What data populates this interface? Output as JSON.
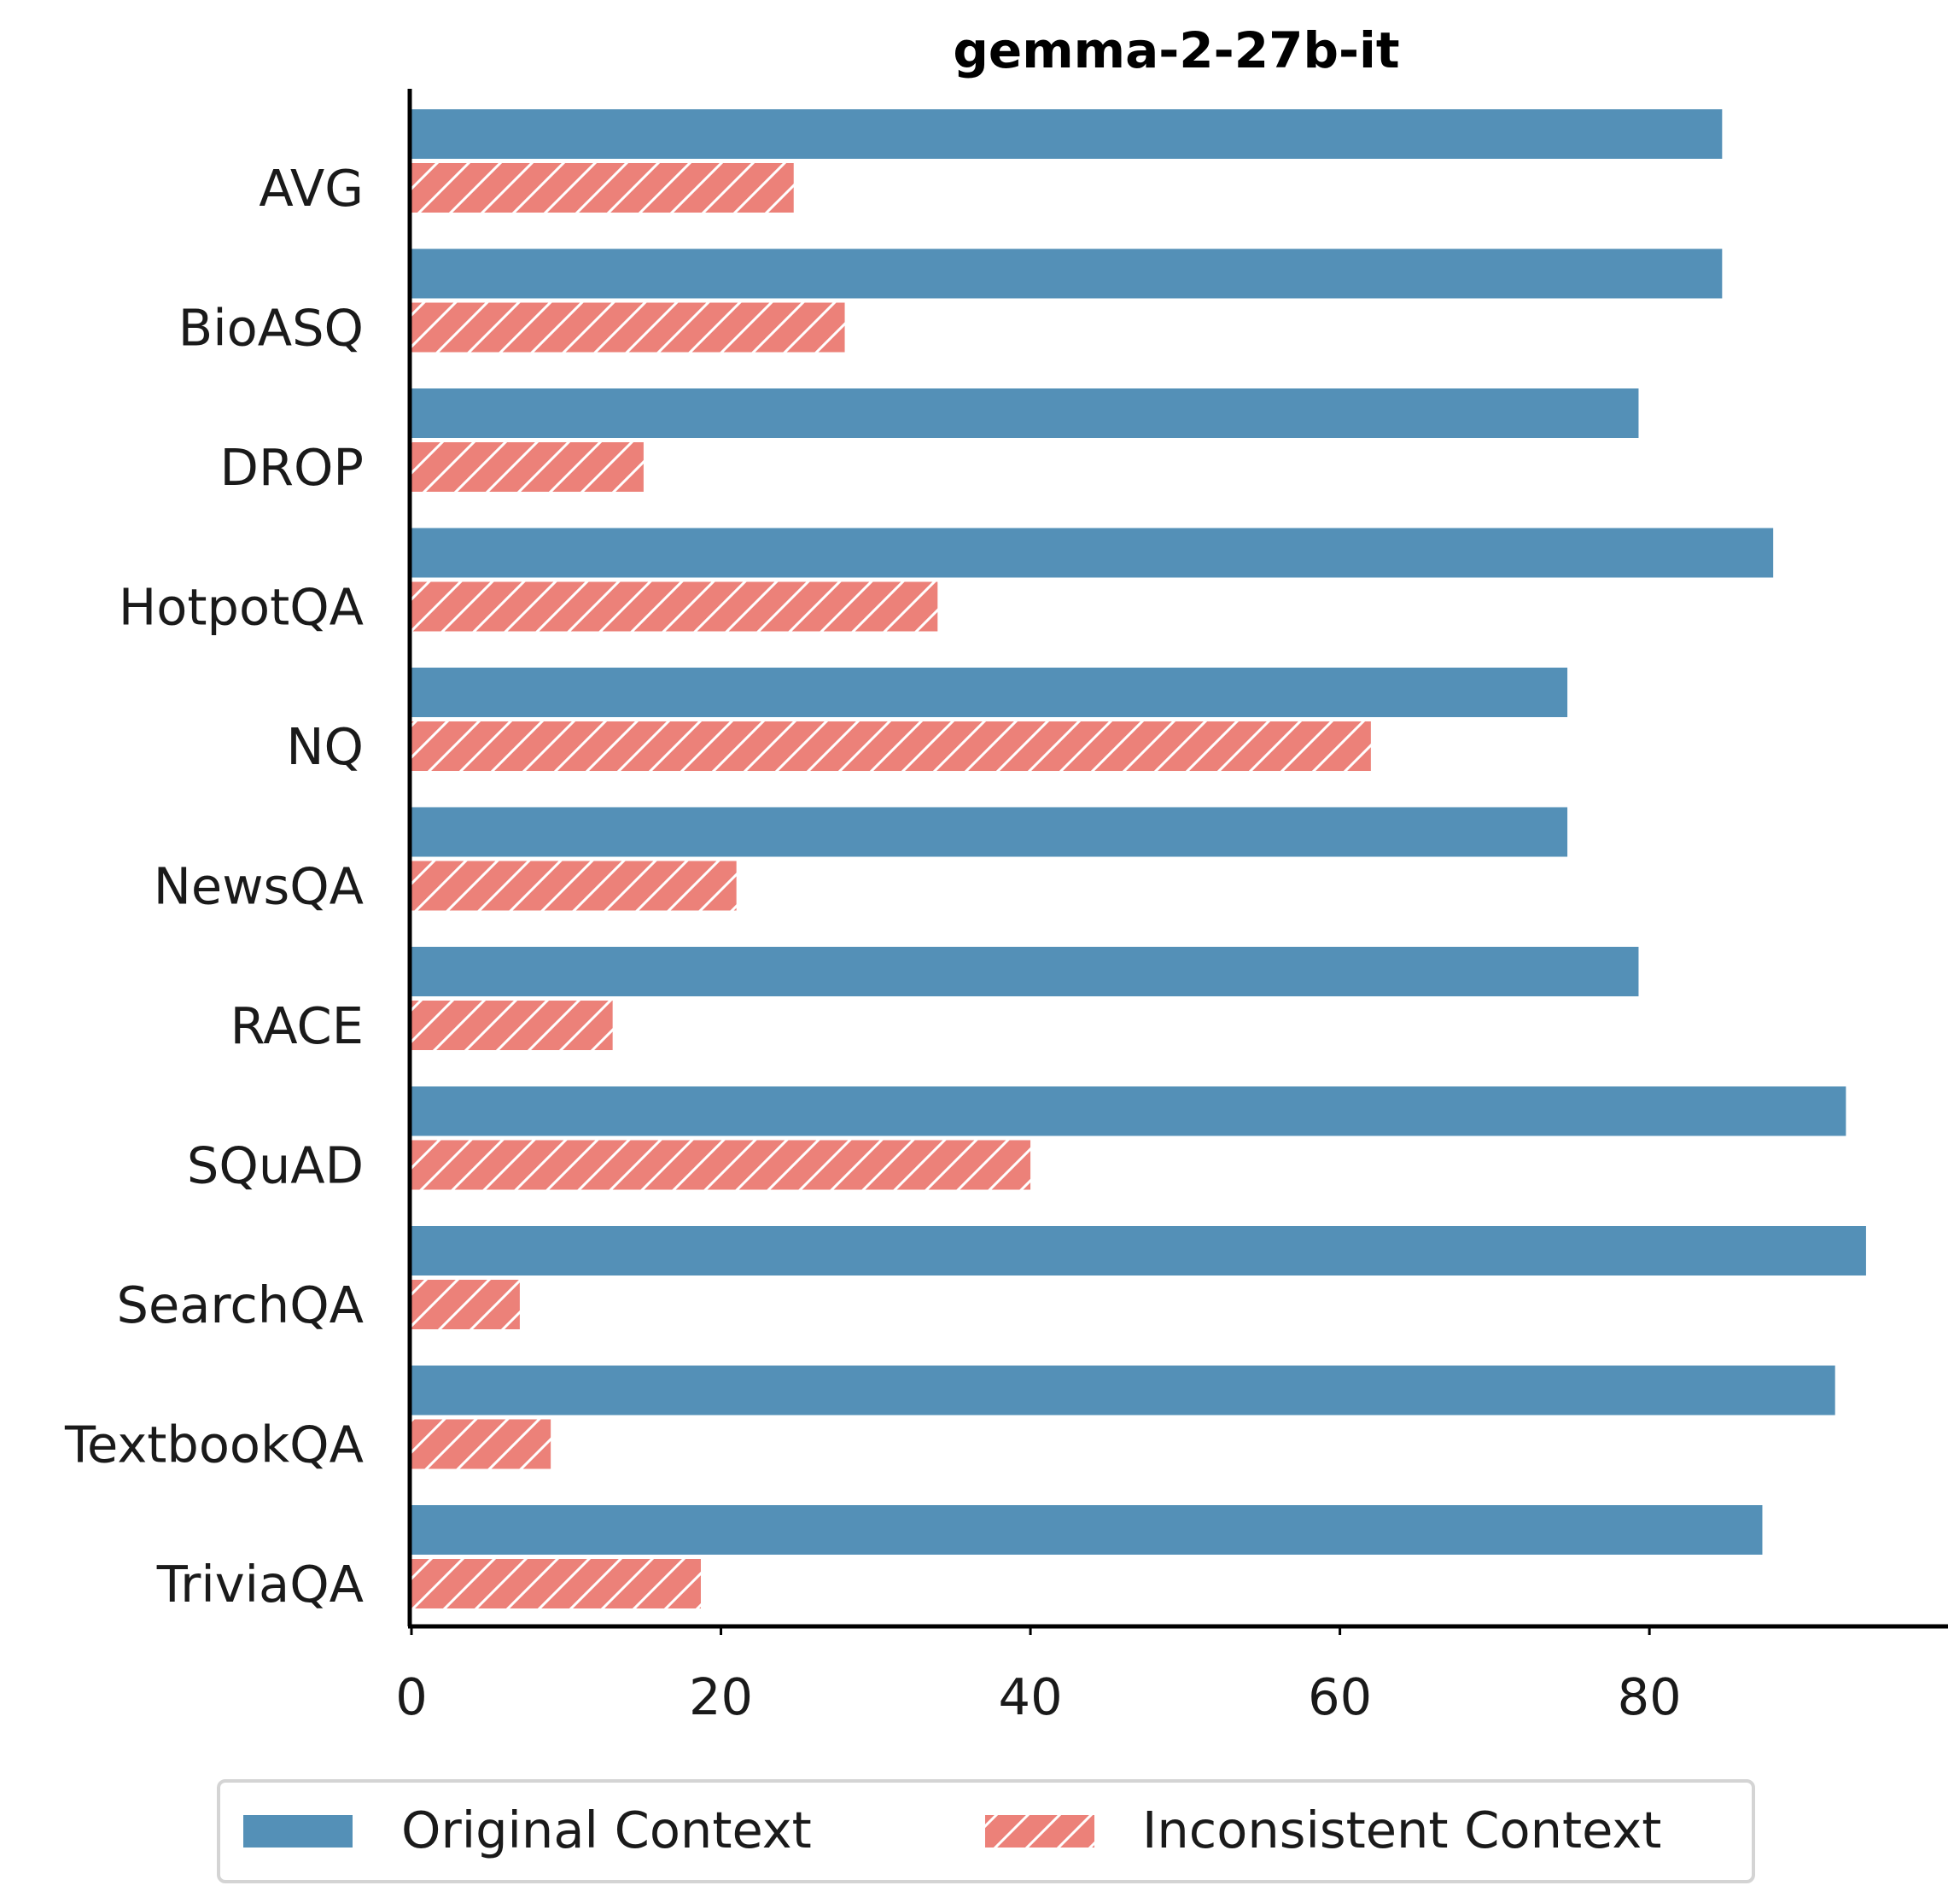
{
  "colors": {
    "original": "#5490b7",
    "inconsistent": "#ec8179",
    "axis": "#000000",
    "text": "#1a1a1a"
  },
  "chart_data": {
    "type": "bar",
    "orientation": "horizontal",
    "title": "gemma-2-27b-it",
    "xlabel": "",
    "ylabel": "",
    "categories": [
      "AVG",
      "BioASQ",
      "DROP",
      "HotpotQA",
      "NQ",
      "NewsQA",
      "RACE",
      "SQuAD",
      "SearchQA",
      "TextbookQA",
      "TriviaQA"
    ],
    "series": [
      {
        "name": "Original Context",
        "values": [
          84.7,
          84.7,
          79.3,
          88.0,
          74.7,
          74.7,
          79.3,
          92.7,
          94.0,
          92.0,
          87.3
        ],
        "hatch": "none"
      },
      {
        "name": "Inconsistent Context",
        "values": [
          24.7,
          28.0,
          15.0,
          34.0,
          62.0,
          21.0,
          13.0,
          40.0,
          7.0,
          9.0,
          18.7
        ],
        "hatch": "diagonal"
      }
    ],
    "x_ticks": [
      "0",
      "20",
      "40",
      "60",
      "80"
    ],
    "xlim": [
      0,
      99.3
    ],
    "grid": false,
    "legend_position": "bottom-center"
  }
}
